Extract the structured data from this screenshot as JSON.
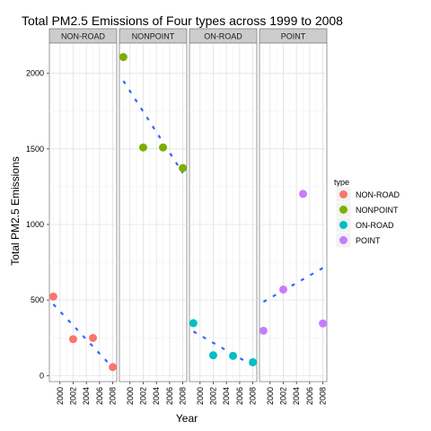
{
  "chart_data": {
    "type": "scatter",
    "title": "Total PM2.5 Emissions of Four types across 1999 to 2008",
    "xlabel": "Year",
    "ylabel": "Total PM2.5 Emissions",
    "x_ticks": [
      "2000",
      "2002",
      "2004",
      "2006",
      "2008"
    ],
    "y_ticks": [
      "0",
      "500",
      "1000",
      "1500",
      "2000"
    ],
    "xlim": [
      1998.4,
      2008.6
    ],
    "ylim": [
      -40,
      2200
    ],
    "grid": true,
    "legend_title": "type",
    "legend_position": "right",
    "trend_line": "dashed linear fit per panel",
    "facets": [
      {
        "label": "NON-ROAD",
        "color": "#F8766D",
        "x": [
          1999,
          2002,
          2005,
          2008
        ],
        "y": [
          522.9,
          240.8,
          248.9,
          55.8
        ],
        "trend": [
          472,
          52
        ]
      },
      {
        "label": "NONPOINT",
        "color": "#7CAE00",
        "x": [
          1999,
          2002,
          2005,
          2008
        ],
        "y": [
          2107.6,
          1509.5,
          1509.5,
          1373.2
        ],
        "trend": [
          1950,
          1340
        ]
      },
      {
        "label": "ON-ROAD",
        "color": "#00BFC4",
        "x": [
          1999,
          2002,
          2005,
          2008
        ],
        "y": [
          346.8,
          134.3,
          130.4,
          88.3
        ],
        "trend": [
          292,
          66
        ]
      },
      {
        "label": "POINT",
        "color": "#C77CFF",
        "x": [
          1999,
          2002,
          2005,
          2008
        ],
        "y": [
          296.8,
          569.3,
          1202.5,
          344.98
        ],
        "trend": [
          488,
          712
        ]
      }
    ]
  }
}
